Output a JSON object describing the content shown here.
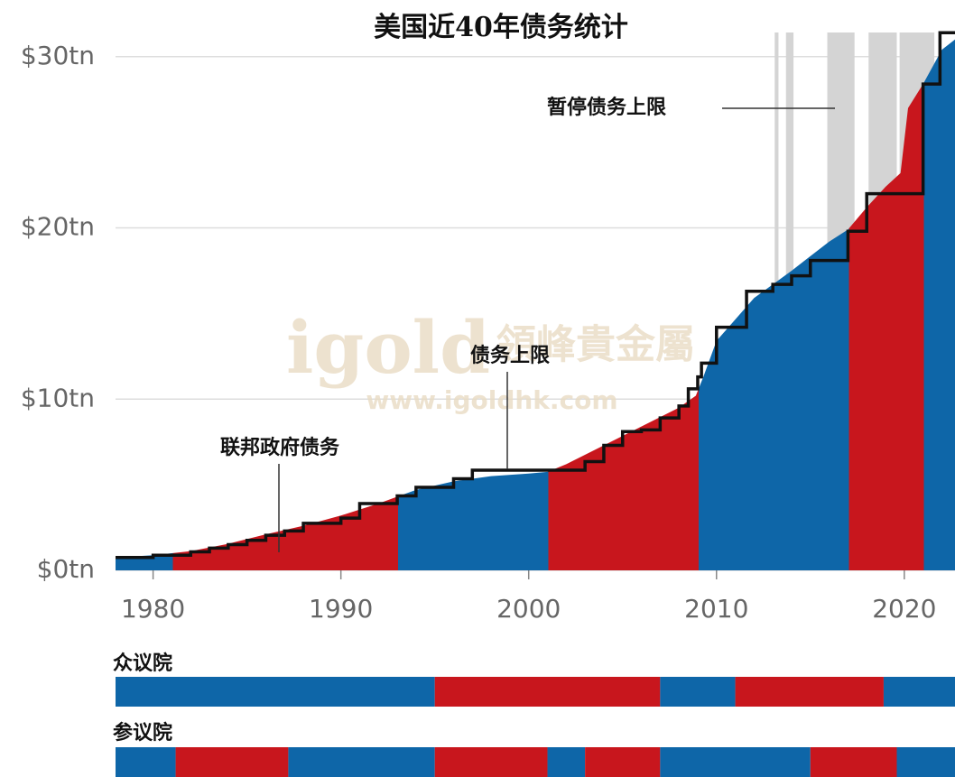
{
  "chart_data": {
    "type": "area",
    "title": "美国近40年债务统计",
    "watermark": [
      "igold",
      "領峰貴金屬",
      "www.igoldhk.com"
    ],
    "xlim": [
      1978,
      2022.7
    ],
    "xticks": [
      1980,
      1990,
      2000,
      2010,
      2020
    ],
    "ylim": [
      0,
      31.2
    ],
    "yticks": [
      {
        "value": 0,
        "label": "$0tn"
      },
      {
        "value": 10,
        "label": "$10tn"
      },
      {
        "value": 20,
        "label": "$20tn"
      },
      {
        "value": 30,
        "label": "$30tn"
      }
    ],
    "grid": true,
    "debt": {
      "name": "联邦政府债务",
      "x": [
        1978,
        1980,
        1982,
        1984,
        1986,
        1988,
        1990,
        1992,
        1993,
        1994,
        1996,
        1998,
        2000,
        2001,
        2002,
        2004,
        2006,
        2008,
        2008.9,
        2009.3,
        2010,
        2012,
        2014,
        2016,
        2017,
        2018,
        2019,
        2019.8,
        2020.2,
        2021,
        2022,
        2022.7
      ],
      "values": [
        0.75,
        0.88,
        1.12,
        1.55,
        2.1,
        2.6,
        3.2,
        3.9,
        4.3,
        4.7,
        5.2,
        5.5,
        5.65,
        5.75,
        6.2,
        7.3,
        8.4,
        9.5,
        10.2,
        11.3,
        13.4,
        15.9,
        17.5,
        19.2,
        19.9,
        21.2,
        22.4,
        23.2,
        27.0,
        28.4,
        30.4,
        31.0
      ]
    },
    "periods": [
      {
        "start": 1978,
        "end": 1981.05,
        "color": "#0e66a8"
      },
      {
        "start": 1981.05,
        "end": 1993.05,
        "color": "#c8161d"
      },
      {
        "start": 1993.05,
        "end": 2001.05,
        "color": "#0e66a8"
      },
      {
        "start": 2001.05,
        "end": 2009.05,
        "color": "#c8161d"
      },
      {
        "start": 2009.05,
        "end": 2017.05,
        "color": "#0e66a8"
      },
      {
        "start": 2017.05,
        "end": 2021.05,
        "color": "#c8161d"
      },
      {
        "start": 2021.05,
        "end": 2022.7,
        "color": "#0e66a8"
      }
    ],
    "ceiling": {
      "name": "债务上限",
      "x": [
        1978,
        1980,
        1982,
        1983,
        1984,
        1985,
        1986,
        1987,
        1988,
        1990,
        1991,
        1993,
        1994,
        1996,
        1997,
        2002,
        2003,
        2004,
        2005,
        2006,
        2007,
        2008,
        2008.5,
        2009,
        2009.2,
        2010,
        2011.6,
        2013,
        2014,
        2015,
        2017,
        2018,
        2021,
        2021.9
      ],
      "values": [
        0.75,
        0.88,
        1.08,
        1.3,
        1.5,
        1.75,
        2.05,
        2.3,
        2.75,
        3.05,
        3.9,
        4.35,
        4.85,
        5.35,
        5.85,
        5.85,
        6.35,
        7.3,
        8.1,
        8.2,
        8.9,
        9.6,
        10.6,
        11.3,
        12.1,
        14.2,
        16.3,
        16.7,
        17.2,
        18.1,
        19.8,
        22.0,
        28.4,
        31.4
      ]
    },
    "suspensions_label": "暂停债务上限",
    "suspensions": [
      [
        2013.1,
        2013.3
      ],
      [
        2013.7,
        2014.1
      ],
      [
        2015.9,
        2017.35
      ],
      [
        2018.1,
        2019.6
      ],
      [
        2019.75,
        2021.6
      ]
    ],
    "house": {
      "name": "众议院",
      "segments": [
        {
          "start": 1978,
          "end": 1995,
          "color": "#0e66a8"
        },
        {
          "start": 1995,
          "end": 2007,
          "color": "#c8161d"
        },
        {
          "start": 2007,
          "end": 2011,
          "color": "#0e66a8"
        },
        {
          "start": 2011,
          "end": 2018.9,
          "color": "#c8161d"
        },
        {
          "start": 2018.9,
          "end": 2022.7,
          "color": "#0e66a8"
        }
      ]
    },
    "senate": {
      "name": "参议院",
      "segments": [
        {
          "start": 1978,
          "end": 1981.2,
          "color": "#0e66a8"
        },
        {
          "start": 1981.2,
          "end": 1987.2,
          "color": "#c8161d"
        },
        {
          "start": 1987.2,
          "end": 1995,
          "color": "#0e66a8"
        },
        {
          "start": 1995,
          "end": 2001,
          "color": "#c8161d"
        },
        {
          "start": 2001,
          "end": 2003,
          "color": "#0e66a8"
        },
        {
          "start": 2003,
          "end": 2007,
          "color": "#c8161d"
        },
        {
          "start": 2007,
          "end": 2015,
          "color": "#0e66a8"
        },
        {
          "start": 2015,
          "end": 2019.6,
          "color": "#c8161d"
        },
        {
          "start": 2019.6,
          "end": 2022.7,
          "color": "#0e66a8"
        }
      ]
    }
  }
}
